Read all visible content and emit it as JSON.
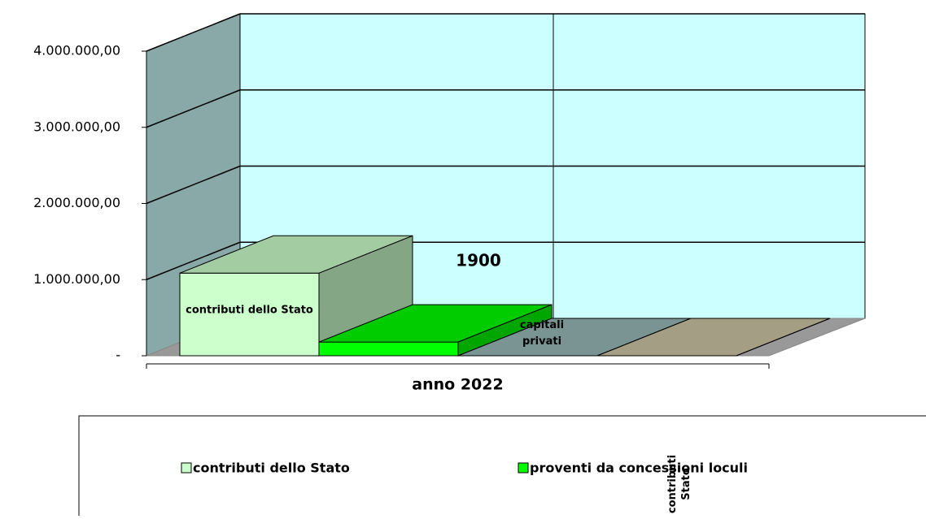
{
  "chart_data": {
    "type": "bar3d",
    "categories": [
      "anno 2022"
    ],
    "series": [
      {
        "name": "contributi dello Stato",
        "color": "#ccffcc",
        "values": [
          1085000
        ],
        "data_label": "contributi dello Stato"
      },
      {
        "name": "proventi da concessioni loculi",
        "color": "#00ff00",
        "values": [
          180000
        ]
      },
      {
        "color": "#99b9b9",
        "values": [
          0
        ],
        "data_label": "capitali privati"
      },
      {
        "color": "#ccc5a5",
        "values": [
          0
        ]
      }
    ],
    "ylim": [
      0,
      4000000
    ],
    "yticks": [
      {
        "value": 0,
        "label": "-"
      },
      {
        "value": 1000000,
        "label": "1.000.000,00"
      },
      {
        "value": 2000000,
        "label": "2.000.000,00"
      },
      {
        "value": 3000000,
        "label": "3.000.000,00"
      },
      {
        "value": 4000000,
        "label": "4.000.000,00"
      }
    ],
    "grid": true,
    "annotations": [
      "1900",
      "contributi Stato"
    ]
  }
}
